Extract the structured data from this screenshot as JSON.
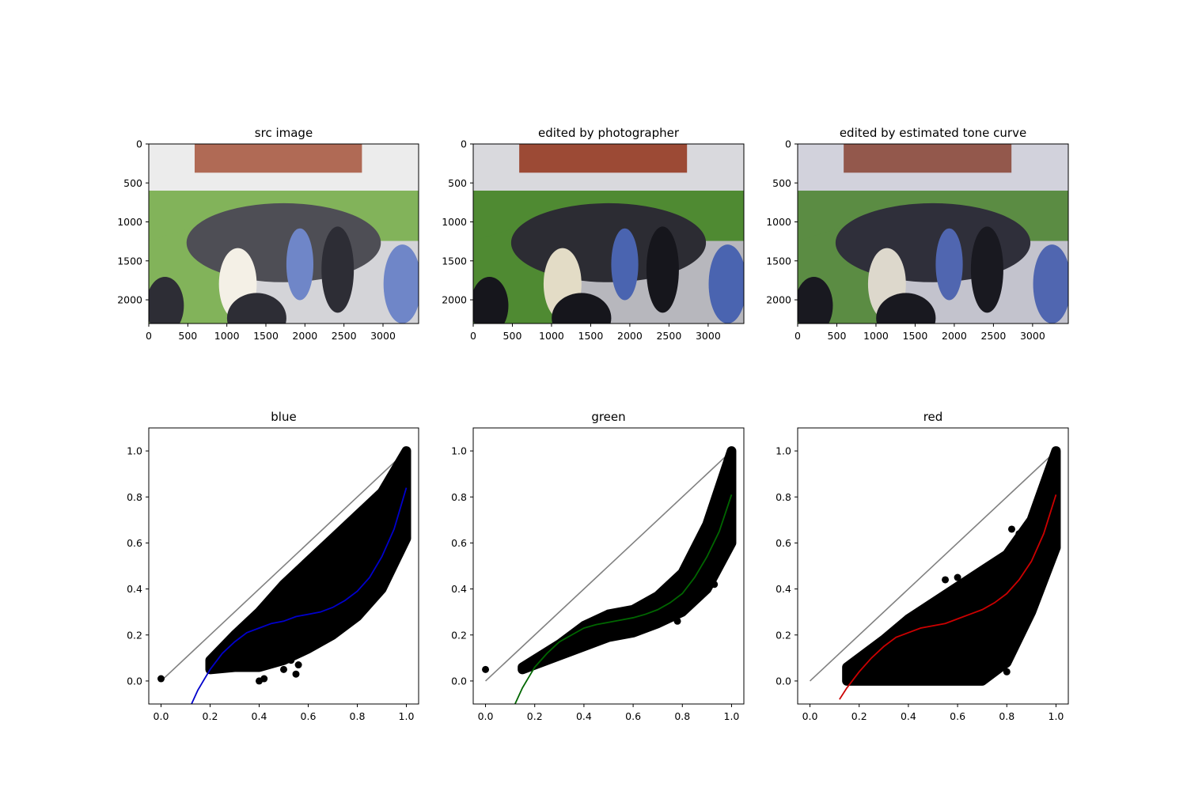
{
  "chart_data": [
    {
      "type": "image",
      "title": "src image",
      "xlim": [
        0,
        3456
      ],
      "ylim": [
        2304,
        0
      ],
      "xticks": [
        0,
        500,
        1000,
        1500,
        2000,
        2500,
        3000
      ],
      "yticks": [
        0,
        500,
        1000,
        1500,
        2000
      ],
      "image_tone": "bright-washed"
    },
    {
      "type": "image",
      "title": "edited by photographer",
      "xlim": [
        0,
        3456
      ],
      "ylim": [
        2304,
        0
      ],
      "xticks": [
        0,
        500,
        1000,
        1500,
        2000,
        2500,
        3000
      ],
      "yticks": [
        0,
        500,
        1000,
        1500,
        2000
      ],
      "image_tone": "darker-saturated"
    },
    {
      "type": "image",
      "title": "edited by estimated tone curve",
      "xlim": [
        0,
        3456
      ],
      "ylim": [
        2304,
        0
      ],
      "xticks": [
        0,
        500,
        1000,
        1500,
        2000,
        2500,
        3000
      ],
      "yticks": [
        0,
        500,
        1000,
        1500,
        2000
      ],
      "image_tone": "darker-greyish"
    },
    {
      "type": "scatter",
      "title": "blue",
      "xlim": [
        -0.05,
        1.05
      ],
      "ylim": [
        -0.1,
        1.1
      ],
      "xticks": [
        0.0,
        0.2,
        0.4,
        0.6,
        0.8,
        1.0
      ],
      "yticks": [
        0.0,
        0.2,
        0.4,
        0.6,
        0.8,
        1.0
      ],
      "curve_color": "#0000cc",
      "identity_color": "#808080",
      "curve": {
        "x": [
          0.12,
          0.15,
          0.2,
          0.25,
          0.3,
          0.35,
          0.4,
          0.45,
          0.5,
          0.55,
          0.6,
          0.65,
          0.7,
          0.75,
          0.8,
          0.85,
          0.9,
          0.95,
          1.0
        ],
        "y": [
          -0.11,
          -0.04,
          0.05,
          0.12,
          0.17,
          0.21,
          0.23,
          0.25,
          0.26,
          0.28,
          0.29,
          0.3,
          0.32,
          0.35,
          0.39,
          0.45,
          0.54,
          0.66,
          0.84
        ]
      },
      "band_lower": {
        "x": [
          0.2,
          0.3,
          0.4,
          0.5,
          0.6,
          0.7,
          0.8,
          0.9,
          1.0
        ],
        "y": [
          0.05,
          0.06,
          0.06,
          0.09,
          0.14,
          0.2,
          0.28,
          0.4,
          0.62
        ]
      },
      "band_upper": {
        "x": [
          0.2,
          0.3,
          0.4,
          0.5,
          0.6,
          0.7,
          0.8,
          0.9,
          1.0
        ],
        "y": [
          0.09,
          0.2,
          0.3,
          0.42,
          0.52,
          0.62,
          0.72,
          0.82,
          1.0
        ]
      },
      "outliers": {
        "x": [
          0.0,
          0.4,
          0.42,
          0.55,
          0.56,
          0.5,
          0.53,
          0.8,
          0.73,
          0.9,
          0.92,
          0.97,
          0.95
        ],
        "y": [
          0.01,
          0.0,
          0.01,
          0.03,
          0.07,
          0.05,
          0.09,
          0.7,
          0.55,
          0.8,
          0.65,
          0.8,
          0.78
        ]
      }
    },
    {
      "type": "scatter",
      "title": "green",
      "xlim": [
        -0.05,
        1.05
      ],
      "ylim": [
        -0.1,
        1.1
      ],
      "xticks": [
        0.0,
        0.2,
        0.4,
        0.6,
        0.8,
        1.0
      ],
      "yticks": [
        0.0,
        0.2,
        0.4,
        0.6,
        0.8,
        1.0
      ],
      "curve_color": "#006600",
      "identity_color": "#808080",
      "curve": {
        "x": [
          0.12,
          0.15,
          0.2,
          0.25,
          0.3,
          0.35,
          0.4,
          0.45,
          0.5,
          0.55,
          0.6,
          0.65,
          0.7,
          0.75,
          0.8,
          0.85,
          0.9,
          0.95,
          1.0
        ],
        "y": [
          -0.1,
          -0.03,
          0.06,
          0.12,
          0.17,
          0.2,
          0.23,
          0.245,
          0.255,
          0.265,
          0.275,
          0.29,
          0.31,
          0.34,
          0.38,
          0.45,
          0.54,
          0.65,
          0.81
        ]
      },
      "band_lower": {
        "x": [
          0.15,
          0.3,
          0.4,
          0.5,
          0.6,
          0.7,
          0.8,
          0.9,
          1.0
        ],
        "y": [
          0.05,
          0.11,
          0.15,
          0.19,
          0.21,
          0.25,
          0.3,
          0.4,
          0.6
        ]
      },
      "band_upper": {
        "x": [
          0.15,
          0.3,
          0.4,
          0.5,
          0.6,
          0.7,
          0.8,
          0.9,
          1.0
        ],
        "y": [
          0.06,
          0.16,
          0.24,
          0.29,
          0.31,
          0.37,
          0.47,
          0.68,
          1.0
        ]
      },
      "outliers": {
        "x": [
          0.0,
          0.78,
          0.73,
          0.85,
          0.93,
          0.88,
          0.69,
          0.96
        ],
        "y": [
          0.05,
          0.26,
          0.28,
          0.37,
          0.42,
          0.55,
          0.36,
          0.82
        ]
      }
    },
    {
      "type": "scatter",
      "title": "red",
      "xlim": [
        -0.05,
        1.05
      ],
      "ylim": [
        -0.1,
        1.1
      ],
      "xticks": [
        0.0,
        0.2,
        0.4,
        0.6,
        0.8,
        1.0
      ],
      "yticks": [
        0.0,
        0.2,
        0.4,
        0.6,
        0.8,
        1.0
      ],
      "curve_color": "#cc0000",
      "identity_color": "#808080",
      "curve": {
        "x": [
          0.12,
          0.15,
          0.2,
          0.25,
          0.3,
          0.35,
          0.4,
          0.45,
          0.5,
          0.55,
          0.6,
          0.65,
          0.7,
          0.75,
          0.8,
          0.85,
          0.9,
          0.95,
          1.0
        ],
        "y": [
          -0.08,
          -0.03,
          0.04,
          0.1,
          0.15,
          0.19,
          0.21,
          0.23,
          0.24,
          0.25,
          0.27,
          0.29,
          0.31,
          0.34,
          0.38,
          0.44,
          0.52,
          0.64,
          0.81
        ]
      },
      "band_lower": {
        "x": [
          0.15,
          0.3,
          0.4,
          0.5,
          0.6,
          0.7,
          0.8,
          0.9,
          1.0
        ],
        "y": [
          0.0,
          0.0,
          0.0,
          0.0,
          0.0,
          0.0,
          0.08,
          0.3,
          0.58
        ]
      },
      "band_upper": {
        "x": [
          0.15,
          0.3,
          0.4,
          0.5,
          0.6,
          0.7,
          0.8,
          0.9,
          1.0
        ],
        "y": [
          0.06,
          0.18,
          0.27,
          0.34,
          0.41,
          0.48,
          0.55,
          0.7,
          1.0
        ]
      },
      "outliers": {
        "x": [
          0.6,
          0.66,
          0.72,
          0.82,
          0.85,
          0.8,
          0.79,
          0.64,
          0.74,
          0.55,
          0.94
        ],
        "y": [
          0.45,
          0.44,
          0.43,
          0.66,
          0.64,
          0.04,
          0.2,
          0.42,
          0.31,
          0.44,
          0.71
        ]
      }
    }
  ]
}
